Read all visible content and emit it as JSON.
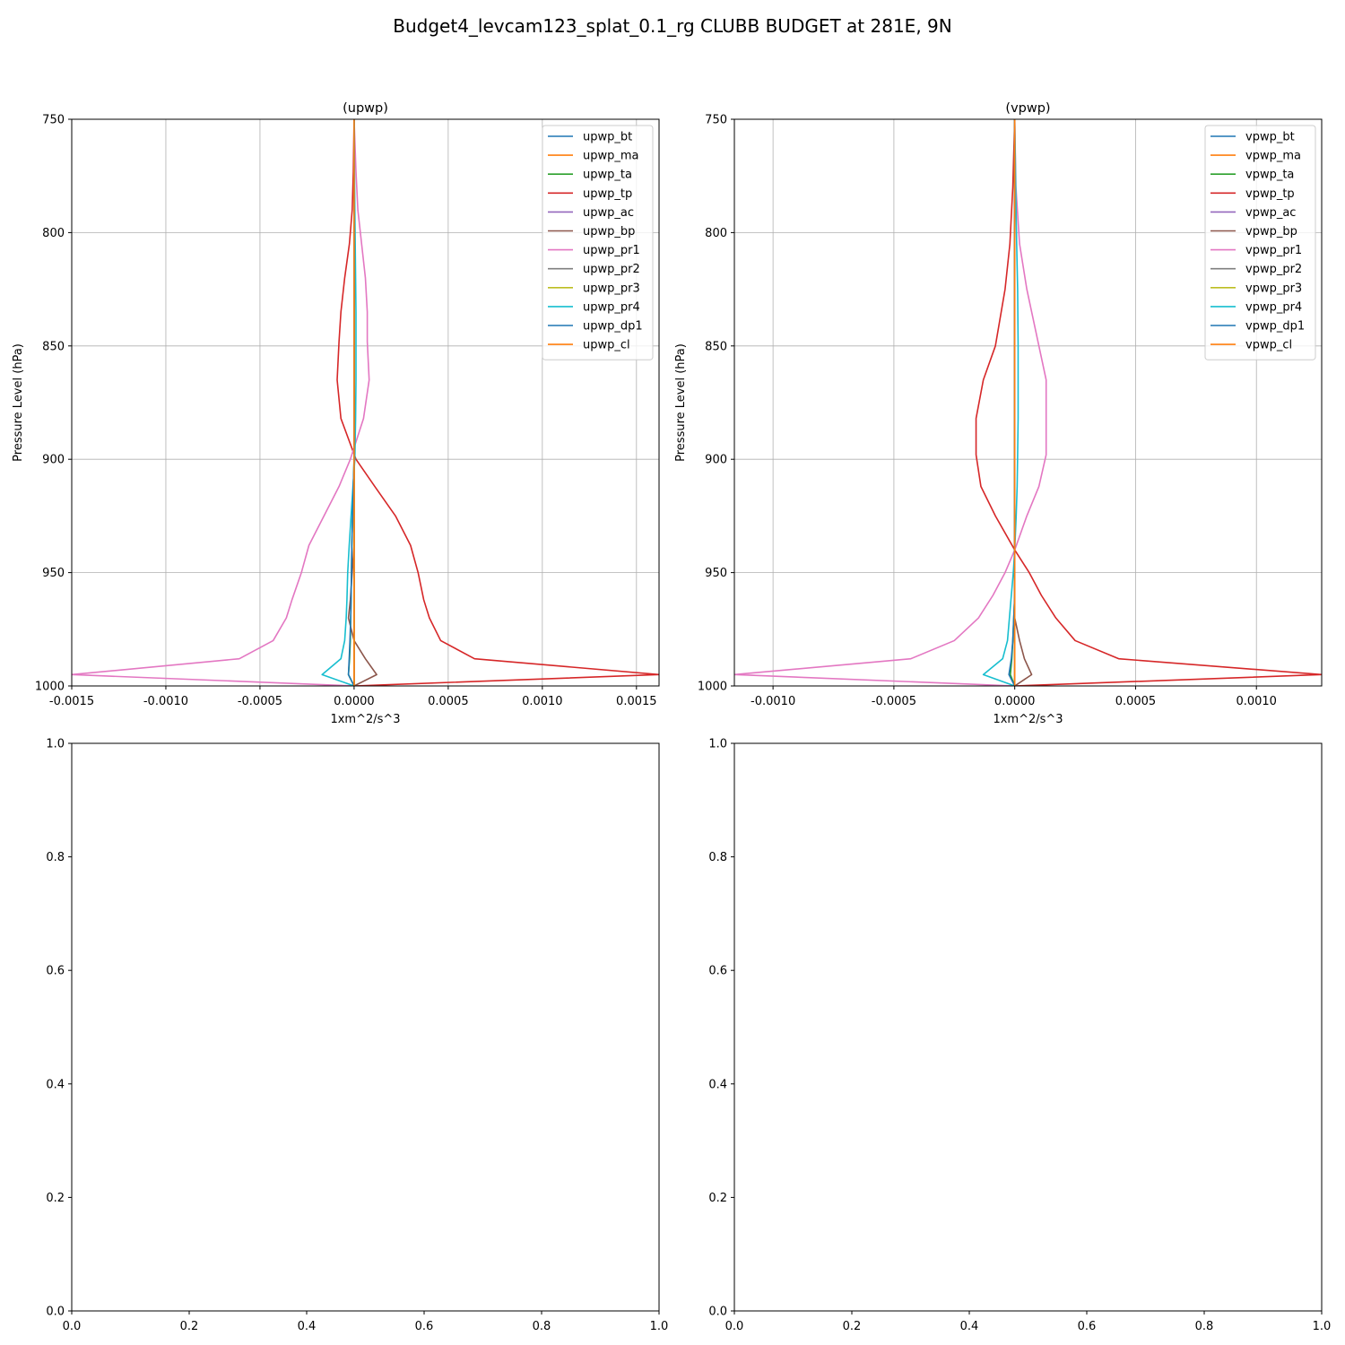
{
  "figure": {
    "title": "Budget4_levcam123_splat_0.1_rg CLUBB BUDGET at 281E, 9N"
  },
  "chart_data": [
    {
      "type": "line",
      "title": "(upwp)",
      "xlabel": "1xm^2/s^3",
      "ylabel": "Pressure Level (hPa)",
      "xlim": [
        -0.0015,
        0.00162
      ],
      "ylim": [
        1000,
        750
      ],
      "x_ticks": [
        "-0.0015",
        "-0.0010",
        "-0.0005",
        "0.0000",
        "0.0005",
        "0.0010",
        "0.0015"
      ],
      "x_tick_values": [
        -0.0015,
        -0.001,
        -0.0005,
        0,
        0.0005,
        0.001,
        0.0015
      ],
      "y_ticks": [
        "750",
        "800",
        "850",
        "900",
        "950",
        "1000"
      ],
      "y_tick_values": [
        750,
        800,
        850,
        900,
        950,
        1000
      ],
      "grid": true,
      "legend_position": "top-right",
      "levels": [
        750,
        773,
        790,
        805,
        820,
        835,
        848,
        865,
        882,
        900,
        912,
        925,
        938,
        950,
        962,
        970,
        980,
        988,
        995,
        1000
      ],
      "series": [
        {
          "name": "upwp_bt",
          "color": "#1f77b4",
          "values": [
            0,
            0,
            0,
            0,
            0,
            0,
            0,
            0,
            0,
            0,
            0,
            0,
            0,
            0,
            0,
            0,
            0,
            0,
            0,
            0
          ]
        },
        {
          "name": "upwp_ma",
          "color": "#ff7f0e",
          "values": [
            0,
            0,
            0,
            0,
            0,
            0,
            0,
            0,
            0,
            0,
            0,
            0,
            0,
            0,
            0,
            0,
            0,
            0,
            0,
            0
          ]
        },
        {
          "name": "upwp_ta",
          "color": "#2ca02c",
          "values": [
            0,
            0,
            0,
            0,
            0,
            0,
            0,
            0,
            0,
            0,
            -4e-06,
            -8e-06,
            -1.2e-05,
            -1.4e-05,
            -1.6e-05,
            -1.8e-05,
            -2e-05,
            -2.4e-05,
            -3e-05,
            0
          ]
        },
        {
          "name": "upwp_tp",
          "color": "#d62728",
          "values": [
            0,
            -4e-06,
            -1e-05,
            -2.5e-05,
            -5e-05,
            -7e-05,
            -8e-05,
            -9e-05,
            -7e-05,
            1e-05,
            0.00011,
            0.00022,
            0.0003,
            0.00034,
            0.00037,
            0.0004,
            0.00046,
            0.00064,
            0.00162,
            0
          ]
        },
        {
          "name": "upwp_ac",
          "color": "#9467bd",
          "values": [
            0,
            0,
            0,
            0,
            0,
            0,
            0,
            0,
            0,
            0,
            0,
            0,
            0,
            0,
            0,
            0,
            0,
            0,
            0,
            0
          ]
        },
        {
          "name": "upwp_bp",
          "color": "#8c564b",
          "values": [
            0,
            0,
            0,
            0,
            0,
            0,
            0,
            0,
            0,
            0,
            0,
            0,
            0,
            -1e-05,
            -2e-05,
            -3e-05,
            0,
            6e-05,
            0.00012,
            0
          ]
        },
        {
          "name": "upwp_pr1",
          "color": "#e377c2",
          "values": [
            0,
            1e-05,
            2e-05,
            4e-05,
            6e-05,
            7e-05,
            7e-05,
            8e-05,
            5e-05,
            -2e-05,
            -8e-05,
            -0.00016,
            -0.00024,
            -0.00028,
            -0.00033,
            -0.00036,
            -0.00043,
            -0.00061,
            -0.0015,
            0
          ]
        },
        {
          "name": "upwp_pr2",
          "color": "#7f7f7f",
          "values": [
            0,
            0,
            0,
            0,
            0,
            0,
            0,
            0,
            0,
            0,
            0,
            0,
            0,
            0,
            0,
            0,
            0,
            0,
            0,
            0
          ]
        },
        {
          "name": "upwp_pr3",
          "color": "#bcbd22",
          "values": [
            0,
            0,
            0,
            0,
            0,
            0,
            0,
            0,
            0,
            0,
            0,
            0,
            0,
            0,
            0,
            0,
            0,
            0,
            0,
            0
          ]
        },
        {
          "name": "upwp_pr4",
          "color": "#17becf",
          "values": [
            0,
            2e-06,
            4e-06,
            6e-06,
            8e-06,
            1e-05,
            1e-05,
            1e-05,
            8e-06,
            4e-06,
            -6e-06,
            -1.6e-05,
            -2.6e-05,
            -3.4e-05,
            -3.8e-05,
            -4.2e-05,
            -5e-05,
            -7e-05,
            -0.00017,
            0
          ]
        },
        {
          "name": "upwp_dp1",
          "color": "#1f77b4",
          "values": [
            0,
            0,
            0,
            0,
            0,
            0,
            0,
            0,
            0,
            0,
            -4e-06,
            -8e-06,
            -1.2e-05,
            -1.4e-05,
            -1.6e-05,
            -1.8e-05,
            -2.2e-05,
            -2.6e-05,
            -3e-05,
            0
          ]
        },
        {
          "name": "upwp_cl",
          "color": "#ff7f0e",
          "values": [
            0,
            0,
            0,
            0,
            0,
            0,
            0,
            0,
            0,
            0,
            0,
            0,
            0,
            0,
            0,
            0,
            0,
            0,
            0,
            0
          ]
        }
      ]
    },
    {
      "type": "line",
      "title": "(vpwp)",
      "xlabel": "1xm^2/s^3",
      "ylabel": "Pressure Level (hPa)",
      "xlim": [
        -0.00116,
        0.00127
      ],
      "ylim": [
        1000,
        750
      ],
      "x_ticks": [
        "-0.0010",
        "-0.0005",
        "0.0000",
        "0.0005",
        "0.0010"
      ],
      "x_tick_values": [
        -0.001,
        -0.0005,
        0,
        0.0005,
        0.001
      ],
      "y_ticks": [
        "750",
        "800",
        "850",
        "900",
        "950",
        "1000"
      ],
      "y_tick_values": [
        750,
        800,
        850,
        900,
        950,
        1000
      ],
      "grid": true,
      "legend_position": "top-right",
      "levels": [
        750,
        780,
        805,
        825,
        850,
        865,
        882,
        898,
        912,
        925,
        940,
        950,
        960,
        970,
        980,
        988,
        995,
        1000
      ],
      "series": [
        {
          "name": "vpwp_bt",
          "color": "#1f77b4",
          "values": [
            0,
            0,
            0,
            0,
            0,
            0,
            0,
            0,
            0,
            0,
            0,
            0,
            0,
            0,
            0,
            0,
            0,
            0
          ]
        },
        {
          "name": "vpwp_ma",
          "color": "#ff7f0e",
          "values": [
            0,
            0,
            0,
            0,
            0,
            0,
            0,
            0,
            0,
            0,
            0,
            0,
            0,
            0,
            0,
            0,
            0,
            0
          ]
        },
        {
          "name": "vpwp_ta",
          "color": "#2ca02c",
          "values": [
            0,
            0,
            0,
            0,
            0,
            0,
            0,
            0,
            0,
            0,
            0,
            0,
            0,
            -4e-06,
            -8e-06,
            -1.2e-05,
            -1.8e-05,
            0
          ]
        },
        {
          "name": "vpwp_tp",
          "color": "#d62728",
          "values": [
            0,
            -8e-06,
            -2e-05,
            -4e-05,
            -8e-05,
            -0.00013,
            -0.00016,
            -0.00016,
            -0.00014,
            -8e-05,
            0,
            6e-05,
            0.00011,
            0.00017,
            0.00025,
            0.00043,
            0.00127,
            0
          ]
        },
        {
          "name": "vpwp_ac",
          "color": "#9467bd",
          "values": [
            0,
            0,
            0,
            0,
            0,
            0,
            0,
            0,
            0,
            0,
            0,
            0,
            0,
            0,
            0,
            0,
            0,
            0
          ]
        },
        {
          "name": "vpwp_bp",
          "color": "#8c564b",
          "values": [
            0,
            0,
            0,
            0,
            0,
            0,
            0,
            0,
            0,
            0,
            0,
            0,
            0,
            0,
            2e-05,
            4e-05,
            7e-05,
            0
          ]
        },
        {
          "name": "vpwp_pr1",
          "color": "#e377c2",
          "values": [
            0,
            5e-06,
            2e-05,
            5e-05,
            0.0001,
            0.00013,
            0.00013,
            0.00013,
            0.0001,
            5e-05,
            0,
            -4e-05,
            -9e-05,
            -0.00015,
            -0.00025,
            -0.00043,
            -0.00116,
            0
          ]
        },
        {
          "name": "vpwp_pr2",
          "color": "#7f7f7f",
          "values": [
            0,
            0,
            0,
            0,
            0,
            0,
            0,
            0,
            0,
            0,
            0,
            0,
            0,
            0,
            0,
            0,
            0,
            0
          ]
        },
        {
          "name": "vpwp_pr3",
          "color": "#bcbd22",
          "values": [
            0,
            0,
            0,
            0,
            0,
            0,
            0,
            0,
            0,
            0,
            0,
            0,
            0,
            0,
            0,
            0,
            0,
            0
          ]
        },
        {
          "name": "vpwp_pr4",
          "color": "#17becf",
          "values": [
            0,
            4e-06,
            8e-06,
            1.2e-05,
            1.4e-05,
            1.4e-05,
            1.4e-05,
            1.2e-05,
            1e-05,
            6e-06,
            0,
            -6e-06,
            -1.4e-05,
            -2.2e-05,
            -3e-05,
            -5e-05,
            -0.00013,
            0
          ]
        },
        {
          "name": "vpwp_dp1",
          "color": "#1f77b4",
          "values": [
            0,
            0,
            0,
            0,
            0,
            0,
            0,
            0,
            0,
            0,
            0,
            0,
            0,
            -4e-06,
            -8e-06,
            -1.4e-05,
            -2.4e-05,
            0
          ]
        },
        {
          "name": "vpwp_cl",
          "color": "#ff7f0e",
          "values": [
            0,
            0,
            0,
            0,
            0,
            0,
            0,
            0,
            0,
            0,
            0,
            0,
            0,
            0,
            0,
            0,
            0,
            0
          ]
        }
      ]
    },
    {
      "type": "line",
      "title": "",
      "xlim": [
        0,
        1
      ],
      "ylim": [
        0,
        1
      ],
      "x_ticks": [
        "0.0",
        "0.2",
        "0.4",
        "0.6",
        "0.8",
        "1.0"
      ],
      "x_tick_values": [
        0,
        0.2,
        0.4,
        0.6,
        0.8,
        1.0
      ],
      "y_ticks": [
        "0.0",
        "0.2",
        "0.4",
        "0.6",
        "0.8",
        "1.0"
      ],
      "y_tick_values": [
        0,
        0.2,
        0.4,
        0.6,
        0.8,
        1.0
      ],
      "grid": false,
      "series": []
    },
    {
      "type": "line",
      "title": "",
      "xlim": [
        0,
        1
      ],
      "ylim": [
        0,
        1
      ],
      "x_ticks": [
        "0.0",
        "0.2",
        "0.4",
        "0.6",
        "0.8",
        "1.0"
      ],
      "x_tick_values": [
        0,
        0.2,
        0.4,
        0.6,
        0.8,
        1.0
      ],
      "y_ticks": [
        "0.0",
        "0.2",
        "0.4",
        "0.6",
        "0.8",
        "1.0"
      ],
      "y_tick_values": [
        0,
        0.2,
        0.4,
        0.6,
        0.8,
        1.0
      ],
      "grid": false,
      "series": []
    }
  ]
}
